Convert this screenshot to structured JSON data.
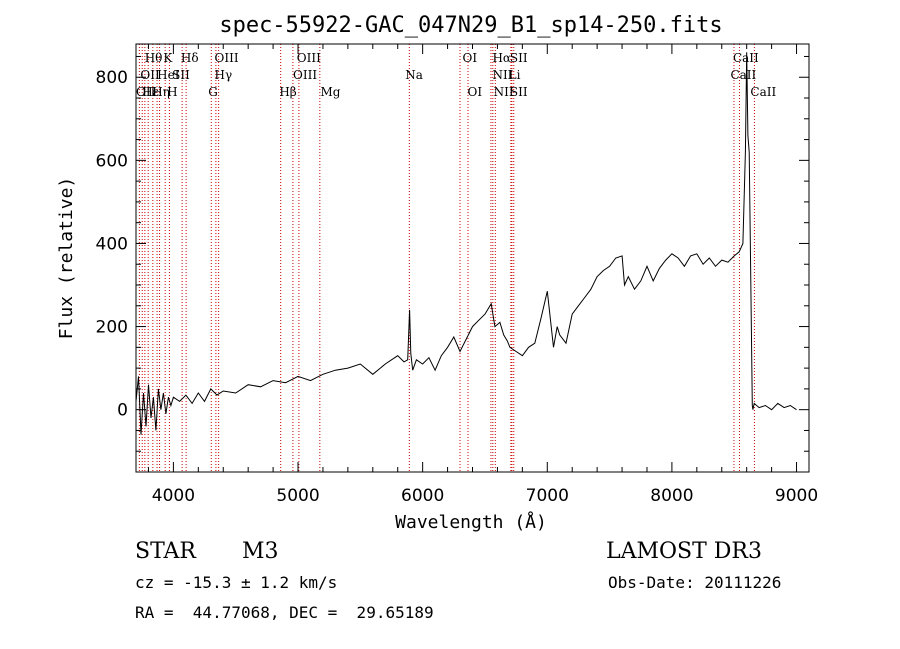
{
  "chart_data": {
    "type": "line",
    "title": "spec-55922-GAC_047N29_B1_sp14-250.fits",
    "xlabel": "Wavelength (Å)",
    "ylabel": "Flux (relative)",
    "xlim": [
      3700,
      9100
    ],
    "ylim": [
      -150,
      880
    ],
    "x_ticks": [
      4000,
      5000,
      6000,
      7000,
      8000,
      9000
    ],
    "y_ticks": [
      0,
      200,
      400,
      600,
      800
    ],
    "grid": false,
    "line_color": "#000000",
    "marker_line_color": "#cc0000",
    "series": [
      {
        "x": [
          3700,
          3720,
          3740,
          3760,
          3780,
          3800,
          3820,
          3840,
          3860,
          3880,
          3900,
          3920,
          3940,
          3960,
          3980,
          4000,
          4050,
          4100,
          4150,
          4200,
          4250,
          4300,
          4350,
          4400,
          4500,
          4600,
          4700,
          4800,
          4900,
          5000,
          5100,
          5200,
          5300,
          5400,
          5500,
          5600,
          5700,
          5800,
          5850,
          5880,
          5895,
          5905,
          5920,
          5950,
          6000,
          6050,
          6100,
          6150,
          6200,
          6250,
          6300,
          6350,
          6400,
          6450,
          6500,
          6550,
          6580,
          6620,
          6650,
          6680,
          6700,
          6750,
          6800,
          6850,
          6900,
          6950,
          7000,
          7050,
          7080,
          7100,
          7150,
          7200,
          7250,
          7300,
          7350,
          7400,
          7450,
          7500,
          7550,
          7600,
          7620,
          7650,
          7700,
          7750,
          7800,
          7850,
          7900,
          7950,
          8000,
          8050,
          8100,
          8150,
          8200,
          8250,
          8300,
          8350,
          8400,
          8450,
          8500,
          8540,
          8570,
          8590,
          8600,
          8610,
          8620,
          8635,
          8645,
          8650,
          8660,
          8700,
          8750,
          8800,
          8850,
          8900,
          8950,
          9000
        ],
        "y": [
          20,
          80,
          -60,
          40,
          -40,
          60,
          -20,
          30,
          -50,
          50,
          0,
          40,
          -10,
          30,
          10,
          30,
          20,
          35,
          15,
          40,
          20,
          50,
          35,
          45,
          40,
          60,
          55,
          70,
          65,
          80,
          70,
          85,
          95,
          100,
          110,
          85,
          110,
          130,
          115,
          120,
          240,
          135,
          95,
          120,
          110,
          125,
          95,
          130,
          150,
          175,
          140,
          170,
          200,
          215,
          230,
          255,
          200,
          210,
          180,
          165,
          150,
          140,
          130,
          150,
          160,
          220,
          285,
          150,
          200,
          180,
          160,
          230,
          250,
          270,
          290,
          320,
          335,
          345,
          365,
          370,
          300,
          320,
          290,
          310,
          345,
          310,
          340,
          360,
          375,
          365,
          345,
          370,
          375,
          350,
          365,
          345,
          360,
          355,
          370,
          380,
          400,
          620,
          860,
          660,
          620,
          270,
          10,
          0,
          15,
          5,
          10,
          0,
          15,
          5,
          10,
          0
        ]
      }
    ],
    "line_markers": [
      {
        "x": 3727,
        "labels": [
          "OII"
        ]
      },
      {
        "x": 3750,
        "labels": [
          "Hθ"
        ]
      },
      {
        "x": 3771,
        "labels": [
          "OII"
        ]
      },
      {
        "x": 3798,
        "labels": [
          "Hε"
        ]
      },
      {
        "x": 3835,
        "labels": [
          "Hη"
        ]
      },
      {
        "x": 3869,
        "labels": [
          "HeI"
        ]
      },
      {
        "x": 3889,
        "labels": [
          "SII"
        ]
      },
      {
        "x": 3934,
        "labels": [
          "K"
        ]
      },
      {
        "x": 3968,
        "labels": [
          "H"
        ]
      },
      {
        "x": 4070,
        "labels": [
          "SII"
        ]
      },
      {
        "x": 4102,
        "labels": [
          "Hδ"
        ]
      },
      {
        "x": 4304,
        "labels": [
          "G"
        ]
      },
      {
        "x": 4341,
        "labels": [
          "Hγ"
        ]
      },
      {
        "x": 4363,
        "labels": [
          "OIII"
        ]
      },
      {
        "x": 4861,
        "labels": [
          "Hβ"
        ]
      },
      {
        "x": 4959,
        "labels": [
          "OIII"
        ]
      },
      {
        "x": 5007,
        "labels": [
          "OIII"
        ]
      },
      {
        "x": 5175,
        "labels": [
          "Mg"
        ]
      },
      {
        "x": 5893,
        "labels": [
          "Na"
        ]
      },
      {
        "x": 6300,
        "labels": [
          "OI"
        ]
      },
      {
        "x": 6364,
        "labels": [
          "OI"
        ]
      },
      {
        "x": 6548,
        "labels": [
          "NII"
        ]
      },
      {
        "x": 6563,
        "labels": [
          "Hα"
        ]
      },
      {
        "x": 6583,
        "labels": [
          "NII"
        ]
      },
      {
        "x": 6708,
        "labels": [
          "Li"
        ]
      },
      {
        "x": 6716,
        "labels": [
          "SII"
        ]
      },
      {
        "x": 6731,
        "labels": [
          "SII"
        ]
      },
      {
        "x": 8498,
        "labels": [
          "CaII"
        ]
      },
      {
        "x": 8542,
        "labels": [
          "CaII"
        ]
      },
      {
        "x": 8662,
        "labels": [
          "CaII"
        ]
      }
    ],
    "marker_text": [
      {
        "text": "Hθ",
        "row": 1,
        "x": 3770
      },
      {
        "text": "K",
        "row": 1,
        "x": 3920
      },
      {
        "text": "Hδ",
        "row": 1,
        "x": 4060
      },
      {
        "text": "OIII",
        "row": 1,
        "x": 4330
      },
      {
        "text": "OIII",
        "row": 1,
        "x": 4990
      },
      {
        "text": "OI",
        "row": 1,
        "x": 6320
      },
      {
        "text": "Hα",
        "row": 1,
        "x": 6560
      },
      {
        "text": "SII",
        "row": 1,
        "x": 6700
      },
      {
        "text": "CaII",
        "row": 1,
        "x": 8490
      },
      {
        "text": "OII",
        "row": 2,
        "x": 3735
      },
      {
        "text": "HeI",
        "row": 2,
        "x": 3870
      },
      {
        "text": "SII",
        "row": 2,
        "x": 3990
      },
      {
        "text": "Hγ",
        "row": 2,
        "x": 4330
      },
      {
        "text": "OIII",
        "row": 2,
        "x": 4960
      },
      {
        "text": "Na",
        "row": 2,
        "x": 5860
      },
      {
        "text": "NII",
        "row": 2,
        "x": 6560
      },
      {
        "text": "Li",
        "row": 2,
        "x": 6690
      },
      {
        "text": "CaII",
        "row": 2,
        "x": 8470
      },
      {
        "text": "OII",
        "row": 3,
        "x": 3700
      },
      {
        "text": "Hε",
        "row": 3,
        "x": 3750
      },
      {
        "text": "Hη",
        "row": 3,
        "x": 3830
      },
      {
        "text": "H",
        "row": 3,
        "x": 3950
      },
      {
        "text": "G",
        "row": 3,
        "x": 4280
      },
      {
        "text": "Hβ",
        "row": 3,
        "x": 4850
      },
      {
        "text": "Mg",
        "row": 3,
        "x": 5180
      },
      {
        "text": "OI",
        "row": 3,
        "x": 6360
      },
      {
        "text": "NII",
        "row": 3,
        "x": 6570
      },
      {
        "text": "SII",
        "row": 3,
        "x": 6700
      },
      {
        "text": "CaII",
        "row": 3,
        "x": 8630
      }
    ]
  },
  "info": {
    "object_class": "STAR",
    "subclass": "M3",
    "survey": "LAMOST DR3",
    "redshift": "cz = -15.3 ± 1.2 km/s",
    "obs_date": "Obs-Date: 20111226",
    "coords": "RA =  44.77068, DEC =  29.65189"
  }
}
